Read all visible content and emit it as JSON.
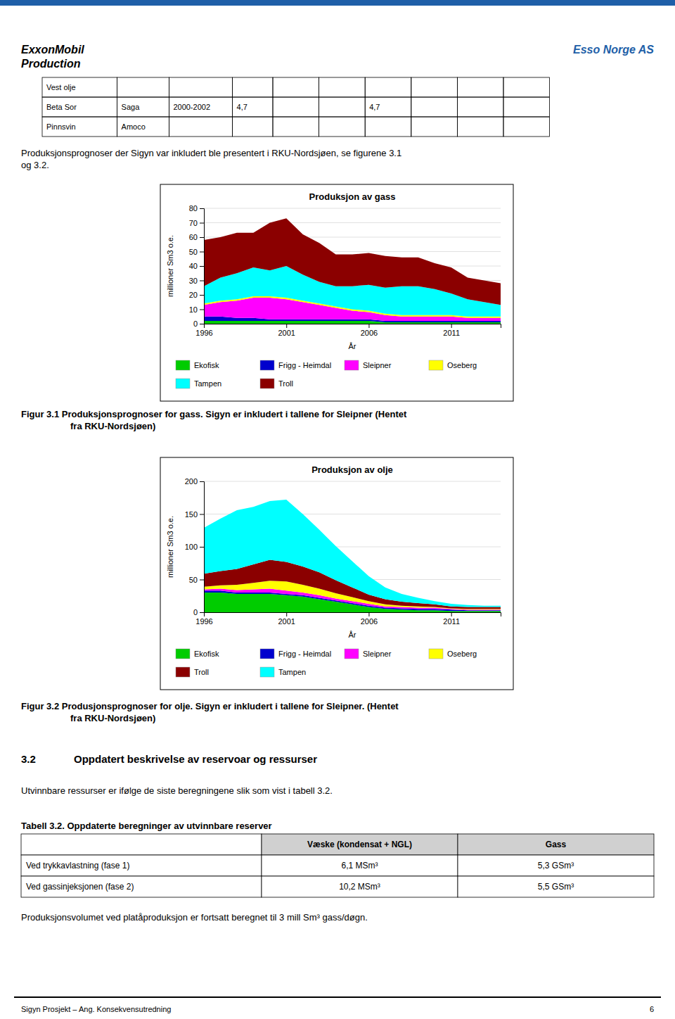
{
  "page": {
    "header_left": [
      "ExxonMobil",
      "Production"
    ],
    "header_right": "Esso Norge AS",
    "header_color": "#1e5fa8",
    "table_rows": [
      [
        "Vest olje",
        null,
        null,
        null,
        null,
        null,
        null,
        null,
        null,
        null
      ],
      [
        "Beta Sor",
        "Saga",
        "2000-2002",
        "4,7",
        null,
        null,
        "4,7",
        null,
        null,
        null
      ],
      [
        "Pinnsvin",
        "Amoco",
        null,
        null,
        null,
        null,
        null,
        null,
        null,
        null
      ]
    ],
    "intro_text": [
      "Produksjonsprognoser der Sigyn var inkludert ble presentert i RKU-Nordsjøen, se figurene 3.1",
      "og 3.2."
    ],
    "fig1_caption": [
      "Figur 3.1 Produksjonsprognoser for gass. Sigyn er inkludert i tallene for Sleipner (Hentet",
      "fra RKU-Nordsjøen)"
    ],
    "fig2_caption": [
      "Figur 3.2 Produsjonsprognoser for olje. Sigyn er inkludert i tallene for Sleipner. (Hentet",
      "fra RKU-Nordsjøen)"
    ],
    "section_title_num": "3.2",
    "section_title_text": "Oppdatert beskrivelse av reservoar og ressurser",
    "para_text": "Utvinnbare ressurser er ifølge de siste beregningene slik som vist i tabell 3.2.",
    "table2_title": "Tabell 3.2. Oppdaterte beregninger av utvinnbare reserver",
    "table2_rows": [
      [
        null,
        "Væske (kondensat + NGL)",
        "Gass"
      ],
      [
        "Ved trykkavlastning (fase 1)",
        "6,1 MSm³",
        "5,3 GSm³"
      ],
      [
        "Ved gassinjeksjonen (fase 2)",
        "10,2 MSm³",
        "5,5 GSm³"
      ]
    ],
    "footer_text": "Produksjonsvolumet ved platåproduksjon er fortsatt beregnet til 3 mill Sm³ gass/døgn.",
    "page_footer_left": "Sigyn Prosjekt – Ang. Konsekvensutredning",
    "page_number": "6"
  },
  "chart_data": [
    {
      "type": "area",
      "stacked": true,
      "grid": true,
      "legend": "bottom",
      "title": "Produksjon av gass",
      "x_label": "År",
      "y_label": "millioner Sm3 o.e.",
      "x": [
        1996,
        1997,
        1998,
        1999,
        2000,
        2001,
        2002,
        2003,
        2004,
        2005,
        2006,
        2007,
        2008,
        2009,
        2010,
        2011,
        2012,
        2013,
        2014
      ],
      "xlim": [
        1996,
        2014
      ],
      "xticks": [
        1996,
        2001,
        2006,
        2011
      ],
      "ylim": [
        0,
        80
      ],
      "yticks": [
        0,
        10,
        20,
        30,
        40,
        50,
        60,
        70,
        80
      ],
      "series": [
        {
          "name": "Ekofisk",
          "color": "#00CC00",
          "values": [
            2,
            2,
            2,
            2,
            2,
            2,
            2,
            2,
            2,
            2,
            2,
            1,
            1,
            1,
            1,
            1,
            1,
            1,
            1
          ]
        },
        {
          "name": "Frigg - Heimdal",
          "color": "#0000CD",
          "values": [
            3,
            3,
            2,
            2,
            1,
            1,
            1,
            1,
            1,
            1,
            1,
            1,
            1,
            1,
            1,
            1,
            1,
            1,
            1
          ]
        },
        {
          "name": "Sleipner",
          "color": "#FF00FF",
          "values": [
            8,
            10,
            12,
            14,
            15,
            14,
            12,
            10,
            8,
            6,
            5,
            4,
            3,
            3,
            3,
            3,
            2,
            2,
            2
          ]
        },
        {
          "name": "Oseberg",
          "color": "#FFFF00",
          "values": [
            1,
            1,
            1,
            1,
            1,
            1,
            1,
            1,
            1,
            1,
            1,
            1,
            1,
            1,
            1,
            1,
            1,
            1,
            1
          ]
        },
        {
          "name": "Tampen",
          "color": "#00FFFF",
          "values": [
            12,
            16,
            18,
            20,
            18,
            22,
            18,
            15,
            14,
            16,
            18,
            18,
            20,
            20,
            18,
            15,
            12,
            10,
            8
          ]
        },
        {
          "name": "Troll",
          "color": "#8B0000",
          "values": [
            32,
            28,
            28,
            24,
            33,
            33,
            28,
            27,
            22,
            22,
            22,
            22,
            20,
            20,
            18,
            18,
            15,
            15,
            15
          ]
        }
      ]
    },
    {
      "type": "area",
      "stacked": true,
      "grid": true,
      "legend": "bottom",
      "title": "Produksjon av olje",
      "x_label": "År",
      "y_label": "millioner Sm3 o.e.",
      "x": [
        1996,
        1997,
        1998,
        1999,
        2000,
        2001,
        2002,
        2003,
        2004,
        2005,
        2006,
        2007,
        2008,
        2009,
        2010,
        2011,
        2012,
        2013,
        2014
      ],
      "xlim": [
        1996,
        2014
      ],
      "xticks": [
        1996,
        2001,
        2006,
        2011
      ],
      "ylim": [
        0,
        200
      ],
      "yticks": [
        0,
        50,
        100,
        150,
        200
      ],
      "series": [
        {
          "name": "Ekofisk",
          "color": "#00CC00",
          "values": [
            30,
            30,
            28,
            28,
            28,
            26,
            24,
            20,
            16,
            12,
            8,
            5,
            4,
            3,
            3,
            2,
            2,
            2,
            2
          ]
        },
        {
          "name": "Frigg - Heimdal",
          "color": "#0000CD",
          "values": [
            3,
            3,
            2,
            2,
            2,
            2,
            2,
            2,
            2,
            2,
            2,
            2,
            2,
            2,
            2,
            2,
            1,
            1,
            1
          ]
        },
        {
          "name": "Sleipner",
          "color": "#FF00FF",
          "values": [
            2,
            3,
            4,
            5,
            6,
            5,
            4,
            4,
            3,
            3,
            3,
            2,
            2,
            2,
            2,
            1,
            1,
            1,
            1
          ]
        },
        {
          "name": "Oseberg",
          "color": "#FFFF00",
          "values": [
            4,
            5,
            8,
            10,
            12,
            14,
            12,
            10,
            8,
            6,
            4,
            3,
            2,
            2,
            1,
            1,
            1,
            1,
            1
          ]
        },
        {
          "name": "Troll",
          "color": "#8B0000",
          "values": [
            20,
            22,
            24,
            28,
            32,
            30,
            28,
            25,
            20,
            15,
            10,
            8,
            6,
            5,
            4,
            3,
            3,
            3,
            3
          ]
        },
        {
          "name": "Tampen",
          "color": "#00FFFF",
          "values": [
            70,
            80,
            90,
            88,
            90,
            95,
            80,
            65,
            52,
            40,
            28,
            18,
            12,
            8,
            5,
            4,
            3,
            2,
            2
          ]
        }
      ]
    }
  ]
}
